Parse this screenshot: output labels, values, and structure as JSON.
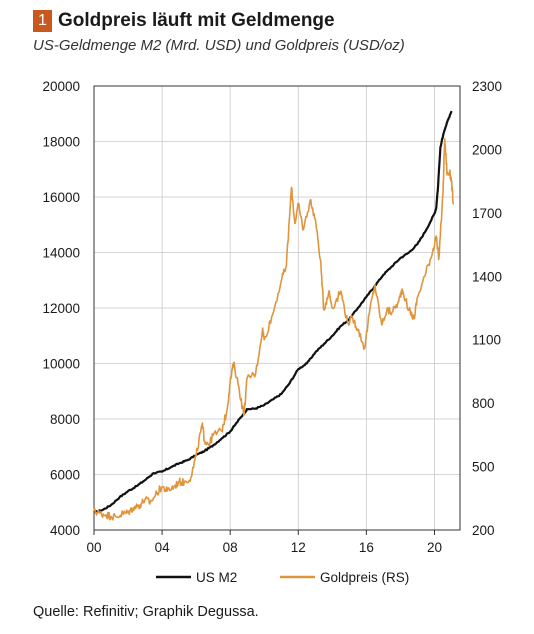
{
  "header": {
    "number": "1",
    "title": "Goldpreis läuft mit Geldmenge",
    "subtitle": "US-Geldmenge M2 (Mrd. USD) und Goldpreis (USD/oz)"
  },
  "source": "Quelle: Refinitiv; Graphik Degussa.",
  "colors": {
    "m2": "#111111",
    "gold": "#e0953c",
    "badge": "#c8581d"
  },
  "chart_data": {
    "type": "line",
    "title": "Goldpreis läuft mit Geldmenge",
    "subtitle": "US-Geldmenge M2 (Mrd. USD) und Goldpreis (USD/oz)",
    "x_range": [
      2000,
      2021.5
    ],
    "x_ticks": [
      2000,
      2004,
      2008,
      2012,
      2016,
      2020
    ],
    "x_tick_labels": [
      "00",
      "04",
      "08",
      "12",
      "16",
      "20"
    ],
    "y_left": {
      "range": [
        4000,
        20000
      ],
      "ticks": [
        4000,
        6000,
        8000,
        10000,
        12000,
        14000,
        16000,
        18000,
        20000
      ]
    },
    "y_right": {
      "range": [
        200,
        2300
      ],
      "ticks": [
        200,
        500,
        800,
        1100,
        1400,
        1700,
        2000,
        2300
      ]
    },
    "grid": true,
    "legend_position": "bottom-center",
    "series": [
      {
        "name": "US M2",
        "axis": "left",
        "points": [
          [
            2000.0,
            4640
          ],
          [
            2000.5,
            4720
          ],
          [
            2001.0,
            4900
          ],
          [
            2001.5,
            5180
          ],
          [
            2002.0,
            5400
          ],
          [
            2002.5,
            5580
          ],
          [
            2003.0,
            5800
          ],
          [
            2003.5,
            6050
          ],
          [
            2004.0,
            6100
          ],
          [
            2004.5,
            6260
          ],
          [
            2005.0,
            6400
          ],
          [
            2005.5,
            6520
          ],
          [
            2006.0,
            6700
          ],
          [
            2006.5,
            6850
          ],
          [
            2007.0,
            7050
          ],
          [
            2007.5,
            7300
          ],
          [
            2008.0,
            7550
          ],
          [
            2008.3,
            7800
          ],
          [
            2008.8,
            8200
          ],
          [
            2009.0,
            8350
          ],
          [
            2009.5,
            8380
          ],
          [
            2010.0,
            8500
          ],
          [
            2010.5,
            8700
          ],
          [
            2011.0,
            8900
          ],
          [
            2011.5,
            9300
          ],
          [
            2012.0,
            9800
          ],
          [
            2012.5,
            10000
          ],
          [
            2013.0,
            10400
          ],
          [
            2013.5,
            10700
          ],
          [
            2014.0,
            11000
          ],
          [
            2014.5,
            11350
          ],
          [
            2015.0,
            11600
          ],
          [
            2015.5,
            12000
          ],
          [
            2016.0,
            12400
          ],
          [
            2016.5,
            12800
          ],
          [
            2017.0,
            13200
          ],
          [
            2017.5,
            13500
          ],
          [
            2018.0,
            13800
          ],
          [
            2018.5,
            14000
          ],
          [
            2019.0,
            14300
          ],
          [
            2019.5,
            14800
          ],
          [
            2020.0,
            15400
          ],
          [
            2020.1,
            15600
          ],
          [
            2020.2,
            16300
          ],
          [
            2020.35,
            17800
          ],
          [
            2020.5,
            18200
          ],
          [
            2020.75,
            18700
          ],
          [
            2021.0,
            19100
          ]
        ]
      },
      {
        "name": "Goldpreis (RS)",
        "axis": "right",
        "points": [
          [
            2000.0,
            290
          ],
          [
            2000.3,
            280
          ],
          [
            2000.7,
            272
          ],
          [
            2001.0,
            265
          ],
          [
            2001.3,
            262
          ],
          [
            2001.7,
            278
          ],
          [
            2002.0,
            282
          ],
          [
            2002.3,
            305
          ],
          [
            2002.7,
            318
          ],
          [
            2003.0,
            345
          ],
          [
            2003.3,
            330
          ],
          [
            2003.7,
            375
          ],
          [
            2004.0,
            405
          ],
          [
            2004.3,
            385
          ],
          [
            2004.7,
            405
          ],
          [
            2005.0,
            428
          ],
          [
            2005.3,
            425
          ],
          [
            2005.7,
            450
          ],
          [
            2006.0,
            550
          ],
          [
            2006.35,
            700
          ],
          [
            2006.5,
            620
          ],
          [
            2006.8,
            610
          ],
          [
            2007.0,
            650
          ],
          [
            2007.5,
            670
          ],
          [
            2007.8,
            760
          ],
          [
            2008.0,
            900
          ],
          [
            2008.2,
            990
          ],
          [
            2008.5,
            880
          ],
          [
            2008.8,
            740
          ],
          [
            2009.0,
            920
          ],
          [
            2009.5,
            940
          ],
          [
            2009.9,
            1150
          ],
          [
            2010.0,
            1100
          ],
          [
            2010.5,
            1220
          ],
          [
            2011.0,
            1380
          ],
          [
            2011.3,
            1450
          ],
          [
            2011.6,
            1820
          ],
          [
            2011.8,
            1650
          ],
          [
            2012.0,
            1740
          ],
          [
            2012.3,
            1620
          ],
          [
            2012.7,
            1760
          ],
          [
            2013.0,
            1670
          ],
          [
            2013.3,
            1480
          ],
          [
            2013.5,
            1240
          ],
          [
            2013.8,
            1330
          ],
          [
            2014.0,
            1250
          ],
          [
            2014.5,
            1330
          ],
          [
            2014.9,
            1180
          ],
          [
            2015.2,
            1200
          ],
          [
            2015.5,
            1150
          ],
          [
            2015.9,
            1060
          ],
          [
            2016.2,
            1240
          ],
          [
            2016.5,
            1360
          ],
          [
            2016.9,
            1170
          ],
          [
            2017.2,
            1240
          ],
          [
            2017.5,
            1230
          ],
          [
            2017.9,
            1280
          ],
          [
            2018.1,
            1340
          ],
          [
            2018.5,
            1240
          ],
          [
            2018.8,
            1200
          ],
          [
            2019.0,
            1300
          ],
          [
            2019.5,
            1420
          ],
          [
            2019.9,
            1520
          ],
          [
            2020.1,
            1590
          ],
          [
            2020.25,
            1480
          ],
          [
            2020.5,
            1790
          ],
          [
            2020.6,
            2050
          ],
          [
            2020.75,
            1880
          ],
          [
            2020.9,
            1890
          ],
          [
            2021.0,
            1850
          ],
          [
            2021.1,
            1740
          ]
        ]
      }
    ]
  }
}
